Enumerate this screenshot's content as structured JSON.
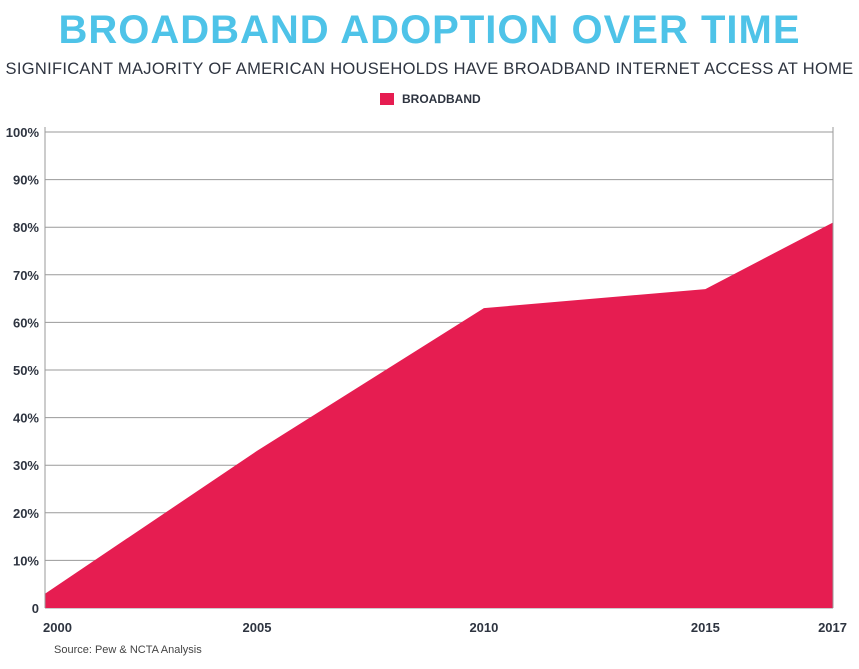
{
  "chart_data": {
    "type": "area",
    "title": "BROADBAND ADOPTION OVER TIME",
    "subtitle": "SIGNIFICANT MAJORITY OF AMERICAN HOUSEHOLDS HAVE BROADBAND INTERNET ACCESS AT HOME",
    "x": [
      2000,
      2005,
      2010,
      2015,
      2017
    ],
    "x_tick_labels": [
      "2000",
      "2005",
      "2010",
      "2015",
      "2017"
    ],
    "series": [
      {
        "name": "BROADBAND",
        "values": [
          3,
          33,
          63,
          67,
          81
        ],
        "color": "#e61d51"
      }
    ],
    "ylim": [
      0,
      100
    ],
    "y_ticks": [
      0,
      10,
      20,
      30,
      40,
      50,
      60,
      70,
      80,
      90,
      100
    ],
    "y_tick_labels": [
      "0",
      "10%",
      "20%",
      "30%",
      "40%",
      "50%",
      "60%",
      "70%",
      "80%",
      "90%",
      "100%"
    ],
    "grid": true,
    "legend_placement": "top-center",
    "source": "Source: Pew & NCTA Analysis"
  },
  "colors": {
    "title": "#4ec3e8",
    "series": "#e61d51"
  }
}
